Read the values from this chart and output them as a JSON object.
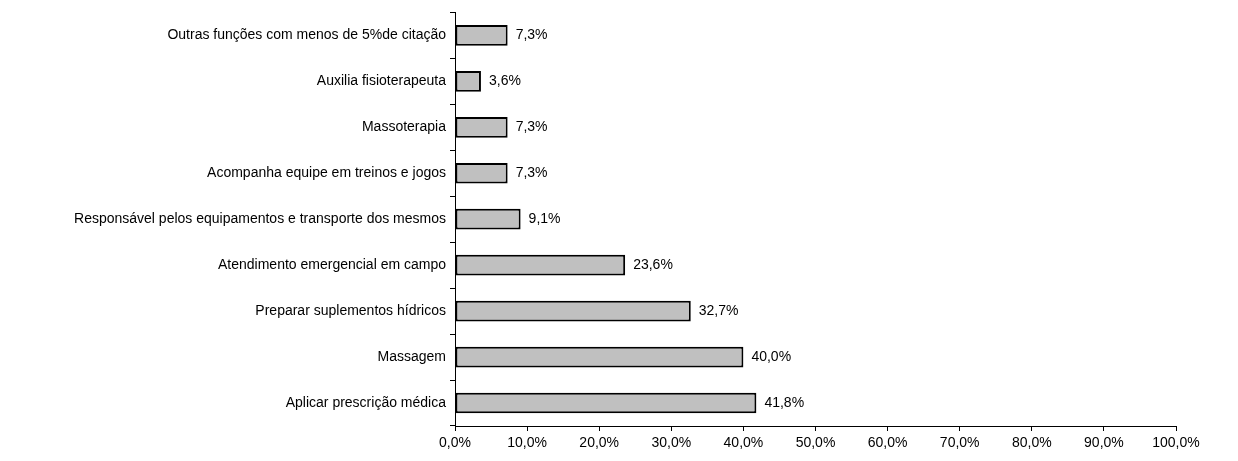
{
  "chart_data": {
    "type": "bar",
    "orientation": "horizontal",
    "categories": [
      "Outras funções com menos de 5%de citação",
      "Auxilia fisioterapeuta",
      "Massoterapia",
      "Acompanha equipe em treinos e jogos",
      "Responsável pelos equipamentos e transporte dos mesmos",
      "Atendimento emergencial em campo",
      "Preparar suplementos hídricos",
      "Massagem",
      "Aplicar prescrição médica"
    ],
    "values": [
      7.3,
      3.6,
      7.3,
      7.3,
      9.1,
      23.6,
      32.7,
      40.0,
      41.8
    ],
    "value_labels": [
      "7,3%",
      "3,6%",
      "7,3%",
      "7,3%",
      "9,1%",
      "23,6%",
      "32,7%",
      "40,0%",
      "41,8%"
    ],
    "color": "#c0c0c0",
    "xlim": [
      0,
      100
    ],
    "xticks": [
      {
        "value": 0,
        "label": "0,0%"
      },
      {
        "value": 10,
        "label": "10,0%"
      },
      {
        "value": 20,
        "label": "20,0%"
      },
      {
        "value": 30,
        "label": "30,0%"
      },
      {
        "value": 40,
        "label": "40,0%"
      },
      {
        "value": 50,
        "label": "50,0%"
      },
      {
        "value": 60,
        "label": "60,0%"
      },
      {
        "value": 70,
        "label": "70,0%"
      },
      {
        "value": 80,
        "label": "80,0%"
      },
      {
        "value": 90,
        "label": "90,0%"
      },
      {
        "value": 100,
        "label": "100,0%"
      }
    ]
  }
}
